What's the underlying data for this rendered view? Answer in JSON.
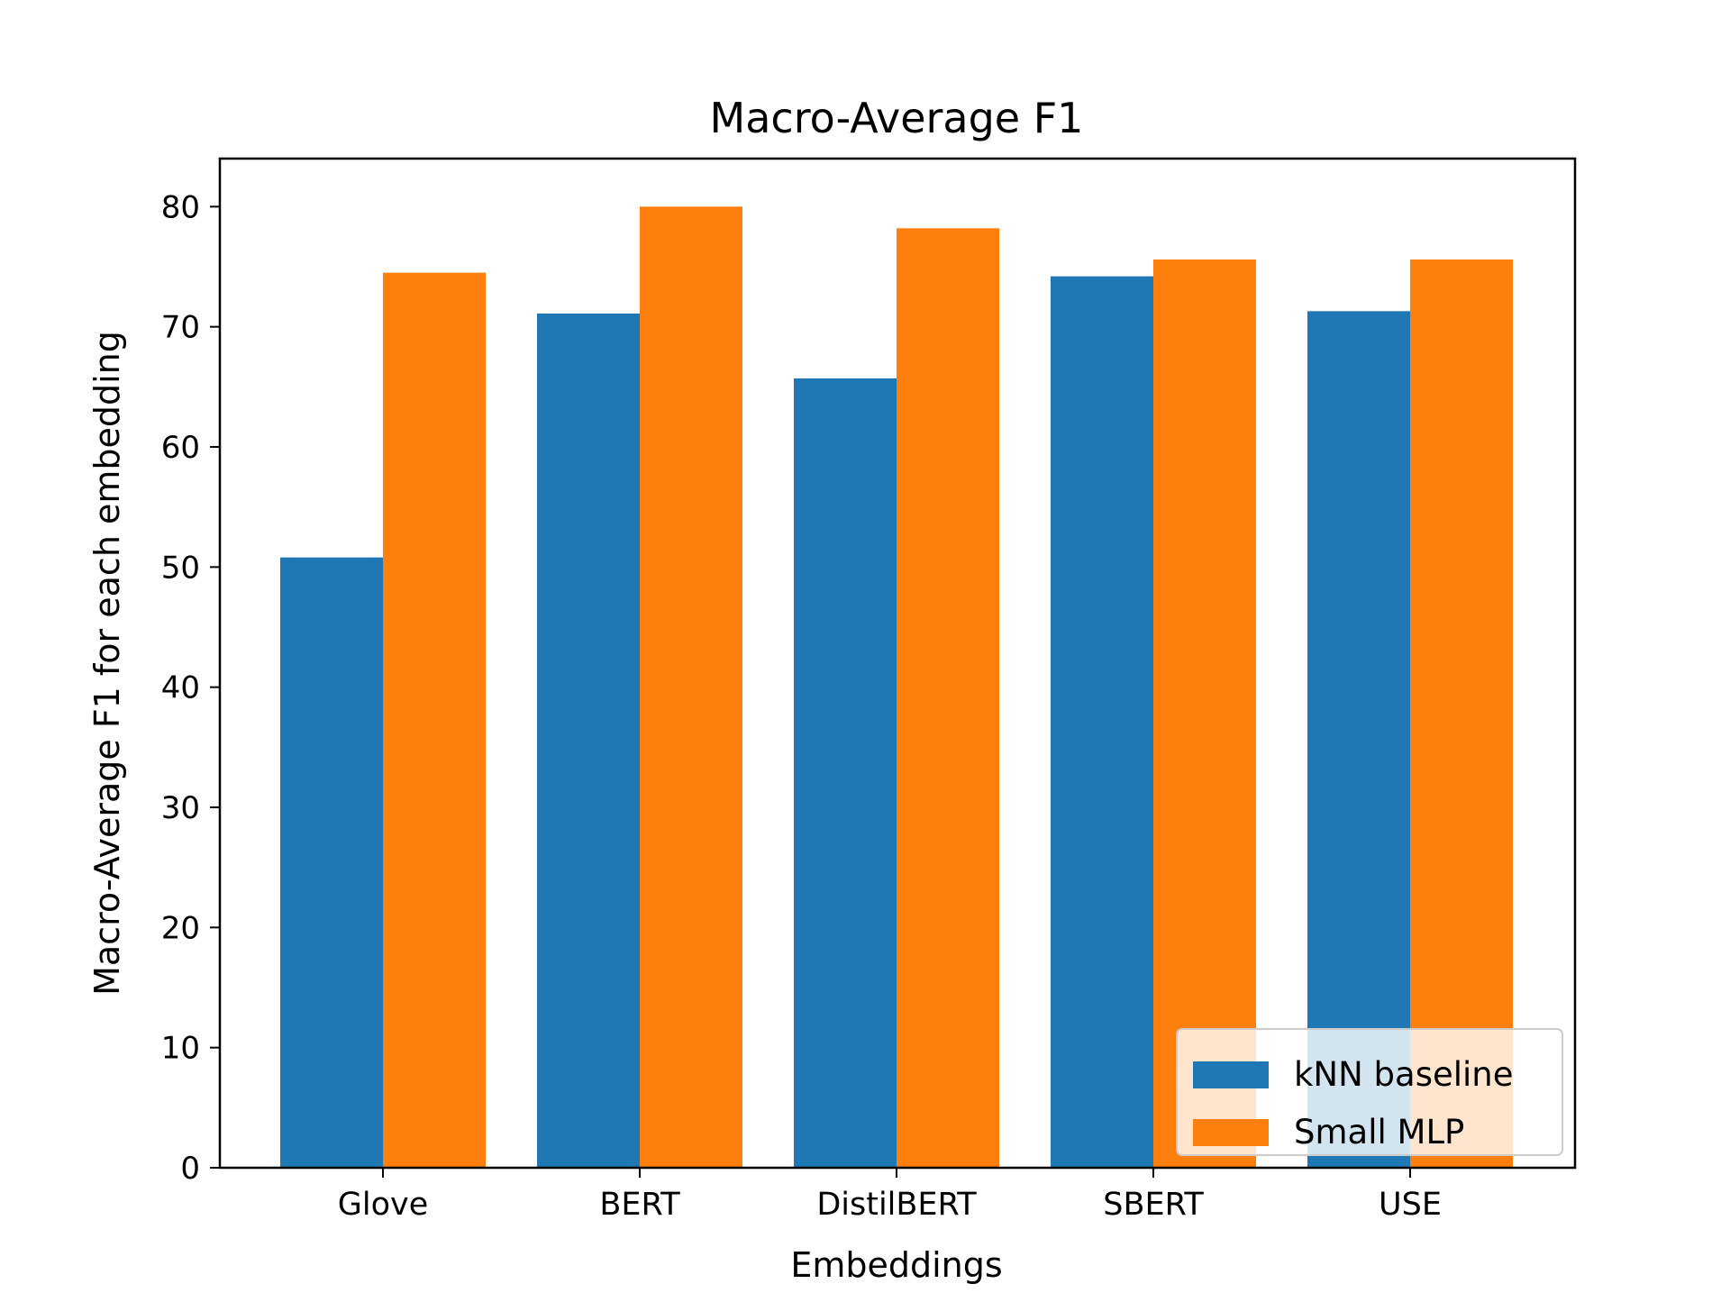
{
  "chart_data": {
    "type": "bar",
    "title": "Macro-Average F1",
    "xlabel": "Embeddings",
    "ylabel": "Macro-Average F1 for each embedding",
    "categories": [
      "Glove",
      "BERT",
      "DistilBERT",
      "SBERT",
      "USE"
    ],
    "series": [
      {
        "name": "kNN baseline",
        "color": "#1f77b4",
        "values": [
          50.8,
          71.1,
          65.7,
          74.2,
          71.3
        ]
      },
      {
        "name": "Small MLP",
        "color": "#ff7f0e",
        "values": [
          74.5,
          80.0,
          78.2,
          75.6,
          75.6
        ]
      }
    ],
    "ylim": [
      0,
      84
    ],
    "yticks": [
      0,
      10,
      20,
      30,
      40,
      50,
      60,
      70,
      80
    ],
    "grid": false,
    "legend_position": "lower-right"
  }
}
